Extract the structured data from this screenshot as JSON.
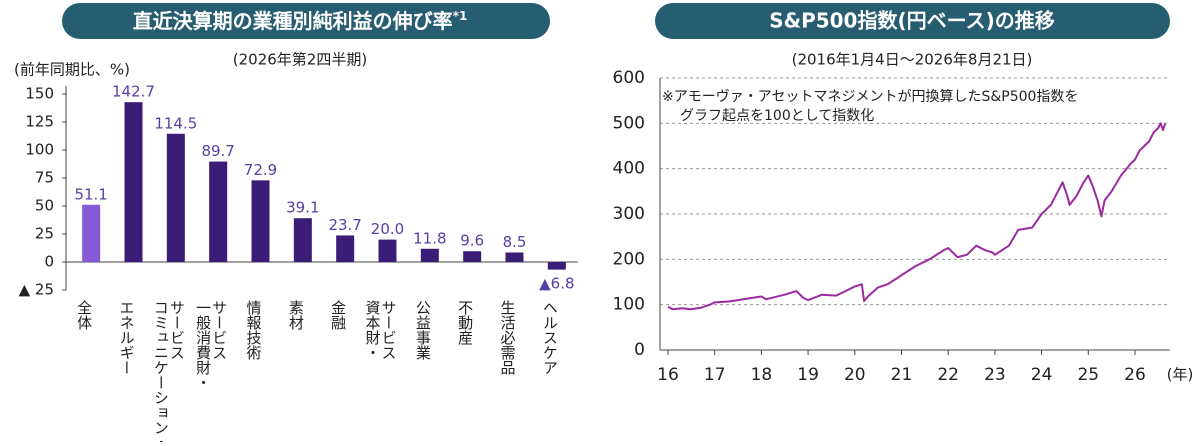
{
  "chart_data": [
    {
      "type": "bar",
      "title": "直近決算期の業種別純利益の伸び率",
      "title_mark": "*1",
      "subtitle": "(2026年第2四半期)",
      "y_label": "(前年同期比、%)",
      "categories": [
        [
          "全体"
        ],
        [
          "エネルギー"
        ],
        [
          "コミュニケーション・",
          "サービス"
        ],
        [
          "一般消費財・",
          "サービス"
        ],
        [
          "情報技術"
        ],
        [
          "素材"
        ],
        [
          "金融"
        ],
        [
          "資本財・",
          "サービス"
        ],
        [
          "公益事業"
        ],
        [
          "不動産"
        ],
        [
          "生活必需品"
        ],
        [
          "ヘルスケア"
        ]
      ],
      "values": [
        51.1,
        142.7,
        114.5,
        89.7,
        72.9,
        39.1,
        23.7,
        20.0,
        11.8,
        9.6,
        8.5,
        -6.8
      ],
      "value_labels": [
        "51.1",
        "142.7",
        "114.5",
        "89.7",
        "72.9",
        "39.1",
        "23.7",
        "20.0",
        "11.8",
        "9.6",
        "8.5",
        "▲6.8"
      ],
      "colors": [
        "#8659d8",
        "#3b1d78",
        "#3b1d78",
        "#3b1d78",
        "#3b1d78",
        "#3b1d78",
        "#3b1d78",
        "#3b1d78",
        "#3b1d78",
        "#3b1d78",
        "#3b1d78",
        "#3b1d78"
      ],
      "label_color": "#5a3ea6",
      "ylim": [
        -25,
        150
      ],
      "yticks": [
        150,
        125,
        100,
        75,
        50,
        25,
        0,
        {
          "value": -25,
          "label": "▲ 25"
        }
      ]
    },
    {
      "type": "line",
      "title": "S&P500指数(円ベース)の推移",
      "subtitle": "(2016年1月4日〜2026年8月21日)",
      "annotations": [
        "※アモーヴァ・アセットマネジメントが円換算したS&P500指数を",
        "グラフ起点を100として指数化"
      ],
      "x_label": "(年)",
      "color": "#9b2aa0",
      "grid": true,
      "x": [
        16.0,
        16.1,
        16.3,
        16.5,
        16.7,
        16.9,
        17.0,
        17.3,
        17.5,
        17.8,
        18.0,
        18.1,
        18.5,
        18.75,
        18.9,
        19.0,
        19.3,
        19.6,
        19.9,
        20.0,
        20.15,
        20.2,
        20.3,
        20.5,
        20.7,
        20.9,
        21.0,
        21.3,
        21.6,
        21.9,
        22.0,
        22.2,
        22.4,
        22.6,
        22.8,
        22.95,
        23.0,
        23.3,
        23.5,
        23.8,
        23.9,
        24.0,
        24.2,
        24.45,
        24.55,
        24.6,
        24.75,
        24.9,
        25.0,
        25.1,
        25.2,
        25.28,
        25.35,
        25.5,
        25.7,
        25.9,
        26.0,
        26.1,
        26.2,
        26.3,
        26.4,
        26.5,
        26.55,
        26.6,
        26.65
      ],
      "values": [
        95,
        90,
        92,
        90,
        93,
        100,
        105,
        107,
        110,
        115,
        118,
        112,
        122,
        130,
        115,
        110,
        122,
        120,
        135,
        140,
        145,
        108,
        120,
        138,
        145,
        158,
        165,
        185,
        200,
        220,
        225,
        205,
        210,
        230,
        220,
        215,
        210,
        230,
        265,
        270,
        285,
        300,
        320,
        370,
        340,
        320,
        340,
        370,
        385,
        360,
        330,
        295,
        330,
        350,
        385,
        410,
        420,
        440,
        450,
        460,
        480,
        490,
        500,
        485,
        500
      ],
      "xlim": [
        16,
        26.75
      ],
      "xticks": [
        16,
        17,
        18,
        19,
        20,
        21,
        22,
        23,
        24,
        25,
        26
      ],
      "ylim": [
        0,
        600
      ],
      "yticks": [
        0,
        100,
        200,
        300,
        400,
        500,
        600
      ]
    }
  ]
}
